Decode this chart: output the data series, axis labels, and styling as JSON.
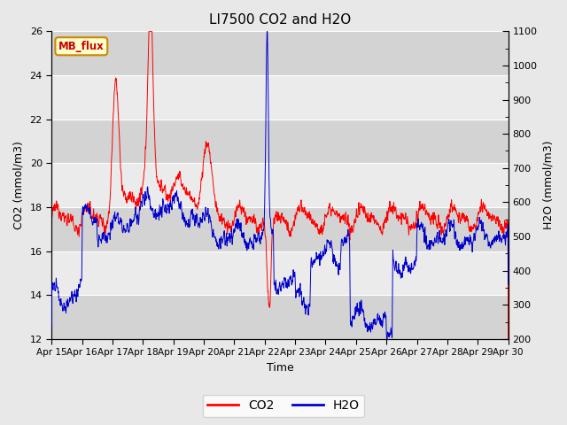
{
  "title": "LI7500 CO2 and H2O",
  "xlabel": "Time",
  "ylabel_left": "CO2 (mmol/m3)",
  "ylabel_right": "H2O (mmol/m3)",
  "ylim_left": [
    12,
    26
  ],
  "ylim_right": [
    200,
    1100
  ],
  "yticks_left": [
    12,
    14,
    16,
    18,
    20,
    22,
    24,
    26
  ],
  "yticks_right": [
    200,
    300,
    400,
    500,
    600,
    700,
    800,
    900,
    1000,
    1100
  ],
  "x_tick_labels": [
    "Apr 15",
    "Apr 16",
    "Apr 17",
    "Apr 18",
    "Apr 19",
    "Apr 20",
    "Apr 21",
    "Apr 22",
    "Apr 23",
    "Apr 24",
    "Apr 25",
    "Apr 26",
    "Apr 27",
    "Apr 28",
    "Apr 29",
    "Apr 30"
  ],
  "co2_color": "#ff0000",
  "h2o_color": "#0000cd",
  "fig_bg_color": "#e8e8e8",
  "plot_bg_color": "#dcdcdc",
  "band_light": "#ebebeb",
  "band_dark": "#d3d3d3",
  "grid_color": "#ffffff",
  "annotation_text": "MB_flux",
  "annotation_bg": "#ffffcc",
  "annotation_border": "#cc8800",
  "legend_entries": [
    "CO2",
    "H2O"
  ],
  "title_fontsize": 11,
  "label_fontsize": 9,
  "tick_fontsize": 8
}
